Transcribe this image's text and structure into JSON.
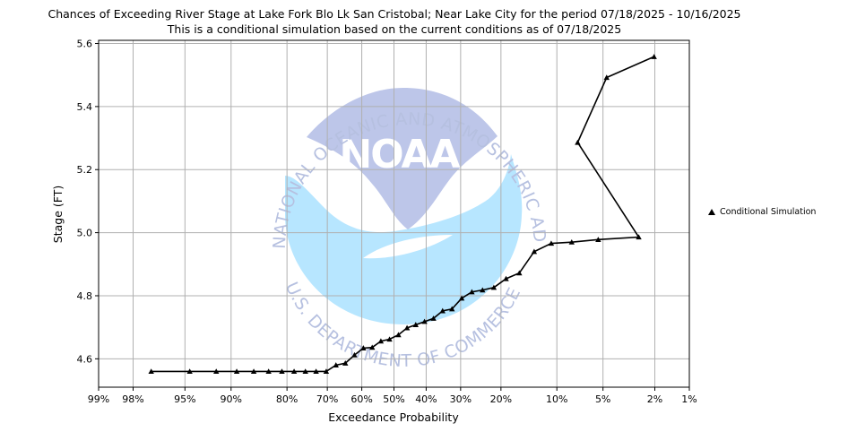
{
  "chart_data": {
    "type": "line",
    "title": "Chances of Exceeding River Stage at Lake Fork Blo Lk San Cristobal; Near Lake City for the period 07/18/2025 - 10/16/2025",
    "subtitle": "This is a conditional simulation based on the current conditions as of 07/18/2025",
    "xlabel": "Exceedance Probability",
    "ylabel": "Stage (FT)",
    "x_scale": "normal-probability",
    "x_ticks": [
      0.99,
      0.98,
      0.95,
      0.9,
      0.8,
      0.7,
      0.6,
      0.5,
      0.4,
      0.3,
      0.2,
      0.1,
      0.05,
      0.02,
      0.01
    ],
    "x_tick_labels": [
      "99%",
      "98%",
      "95%",
      "90%",
      "80%",
      "70%",
      "60%",
      "50%",
      "40%",
      "30%",
      "20%",
      "10%",
      "5%",
      "2%",
      "1%"
    ],
    "ylim": [
      4.51,
      5.61
    ],
    "y_ticks": [
      4.6,
      4.8,
      5.0,
      5.2,
      5.4,
      5.6
    ],
    "y_tick_labels": [
      "4.6",
      "4.8",
      "5.0",
      "5.2",
      "5.4",
      "5.6"
    ],
    "grid": true,
    "legend_position": "right",
    "series": [
      {
        "name": "Conditional Simulation",
        "color": "#000000",
        "marker": "triangle",
        "points": [
          [
            0.972,
            4.56
          ],
          [
            0.946,
            4.56
          ],
          [
            0.919,
            4.56
          ],
          [
            0.892,
            4.56
          ],
          [
            0.865,
            4.56
          ],
          [
            0.838,
            4.56
          ],
          [
            0.811,
            4.56
          ],
          [
            0.784,
            4.56
          ],
          [
            0.757,
            4.56
          ],
          [
            0.73,
            4.56
          ],
          [
            0.703,
            4.56
          ],
          [
            0.676,
            4.58
          ],
          [
            0.649,
            4.586
          ],
          [
            0.622,
            4.612
          ],
          [
            0.595,
            4.634
          ],
          [
            0.568,
            4.636
          ],
          [
            0.541,
            4.656
          ],
          [
            0.514,
            4.662
          ],
          [
            0.486,
            4.676
          ],
          [
            0.459,
            4.698
          ],
          [
            0.432,
            4.708
          ],
          [
            0.405,
            4.718
          ],
          [
            0.378,
            4.728
          ],
          [
            0.351,
            4.752
          ],
          [
            0.324,
            4.758
          ],
          [
            0.297,
            4.792
          ],
          [
            0.27,
            4.812
          ],
          [
            0.243,
            4.818
          ],
          [
            0.216,
            4.826
          ],
          [
            0.189,
            4.854
          ],
          [
            0.162,
            4.872
          ],
          [
            0.135,
            4.94
          ],
          [
            0.108,
            4.966
          ],
          [
            0.081,
            4.97
          ],
          [
            0.054,
            4.978
          ],
          [
            0.027,
            4.986
          ],
          [
            0.0742,
            5.286
          ],
          [
            0.0471,
            5.492
          ],
          [
            0.0203,
            5.558
          ]
        ]
      }
    ]
  },
  "watermark": {
    "ring_text_top": "NATIONAL OCEANIC AND ATMOSPHERIC ADMINISTRATION",
    "ring_text_bottom": "U.S. DEPARTMENT OF COMMERCE",
    "center_text": "NOAA"
  }
}
